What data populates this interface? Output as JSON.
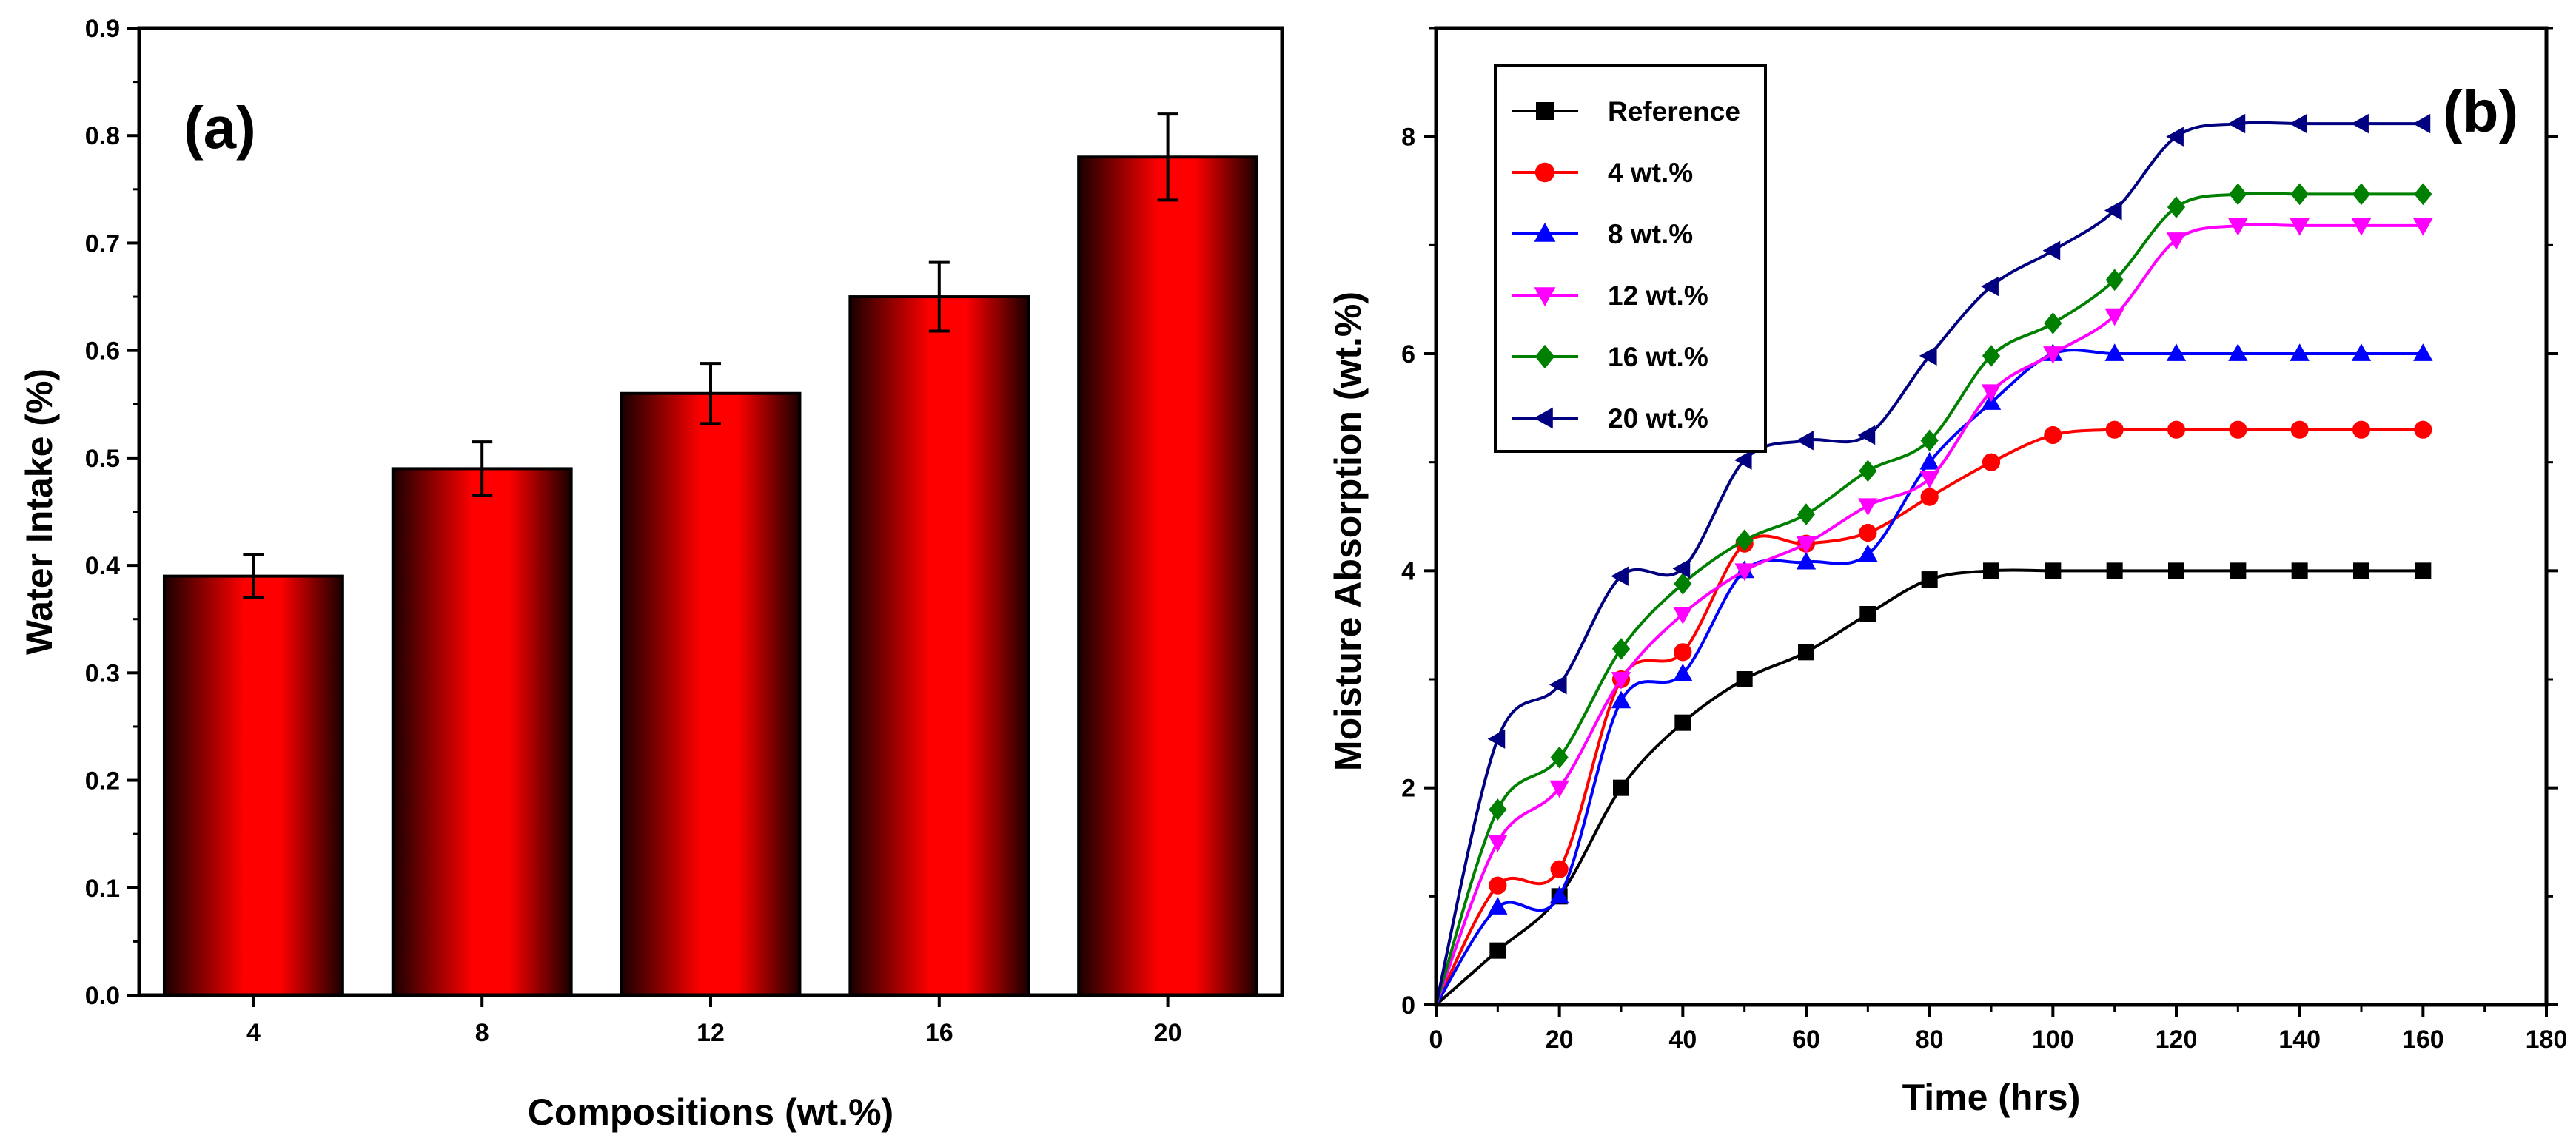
{
  "chart_data": [
    {
      "panel": "(a)",
      "type": "bar",
      "xlabel": "Compositions (wt.%)",
      "ylabel": "Water Intake (%)",
      "categories": [
        "4",
        "8",
        "12",
        "16",
        "20"
      ],
      "values": [
        0.39,
        0.49,
        0.56,
        0.65,
        0.78
      ],
      "errors": [
        0.02,
        0.025,
        0.028,
        0.032,
        0.04
      ],
      "ylim": [
        0,
        0.9
      ],
      "yticks": [
        "0.0",
        "0.1",
        "0.2",
        "0.3",
        "0.4",
        "0.5",
        "0.6",
        "0.7",
        "0.8",
        "0.9"
      ],
      "bar_color": "#ff0000",
      "bar_shade_color": "#1a0000",
      "grid": false
    },
    {
      "panel": "(b)",
      "type": "line",
      "xlabel": "Time (hrs)",
      "ylabel": "Moisture Absorption (wt.%)",
      "xlim": [
        0,
        180
      ],
      "ylim": [
        0,
        9
      ],
      "xticks": [
        "0",
        "20",
        "40",
        "60",
        "80",
        "100",
        "120",
        "140",
        "160",
        "180"
      ],
      "yticks": [
        "0",
        "2",
        "4",
        "6",
        "8"
      ],
      "x": [
        0,
        10,
        20,
        30,
        40,
        50,
        60,
        70,
        80,
        90,
        100,
        110,
        120,
        130,
        140,
        150,
        160
      ],
      "legend_position": "top-left",
      "grid": false,
      "series": [
        {
          "name": "Reference",
          "color": "#000000",
          "marker": "square",
          "values": [
            0,
            0.5,
            1.0,
            2.0,
            2.6,
            3.0,
            3.25,
            3.6,
            3.92,
            4.0,
            4.0,
            4.0,
            4.0,
            4.0,
            4.0,
            4.0,
            4.0
          ]
        },
        {
          "name": "4 wt.%",
          "color": "#ff0000",
          "marker": "circle",
          "values": [
            0,
            1.1,
            1.25,
            3.0,
            3.25,
            4.25,
            4.25,
            4.35,
            4.68,
            5.0,
            5.25,
            5.3,
            5.3,
            5.3,
            5.3,
            5.3,
            5.3
          ]
        },
        {
          "name": "8 wt.%",
          "color": "#0000ff",
          "marker": "triangle-up",
          "values": [
            0,
            0.9,
            1.0,
            2.8,
            3.05,
            4.0,
            4.08,
            4.15,
            5.0,
            5.55,
            6.0,
            6.0,
            6.0,
            6.0,
            6.0,
            6.0,
            6.0
          ]
        },
        {
          "name": "12 wt.%",
          "color": "#ff00ff",
          "marker": "triangle-down",
          "values": [
            0,
            1.5,
            2.0,
            3.0,
            3.6,
            4.0,
            4.25,
            4.6,
            4.85,
            5.65,
            6.0,
            6.35,
            7.05,
            7.18,
            7.18,
            7.18,
            7.18
          ]
        },
        {
          "name": "16 wt.%",
          "color": "#008000",
          "marker": "diamond",
          "values": [
            0,
            1.8,
            2.28,
            3.28,
            3.88,
            4.28,
            4.52,
            4.92,
            5.2,
            5.98,
            6.28,
            6.68,
            7.35,
            7.47,
            7.47,
            7.47,
            7.47
          ]
        },
        {
          "name": "20 wt.%",
          "color": "#000080",
          "marker": "triangle-left",
          "values": [
            0,
            2.45,
            2.95,
            3.95,
            4.02,
            5.02,
            5.2,
            5.25,
            5.98,
            6.62,
            6.95,
            7.32,
            8.0,
            8.12,
            8.12,
            8.12,
            8.12
          ]
        }
      ]
    }
  ]
}
